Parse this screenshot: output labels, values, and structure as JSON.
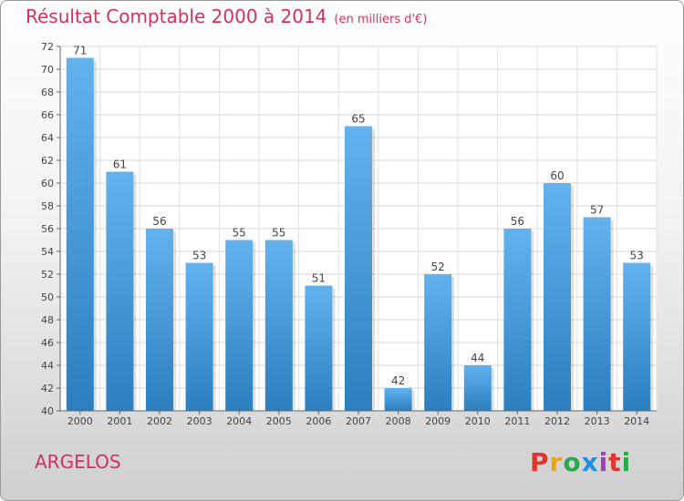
{
  "header": {
    "title": "Résultat Comptable 2000 à 2014",
    "unit": "(en milliers d'€)"
  },
  "footer": {
    "commune": "ARGELOS",
    "logo_text": "Proxiti",
    "logo_colors": [
      "#e3342f",
      "#f0a30a",
      "#2aa84a",
      "#1f8fe0",
      "#9b3fc4",
      "#e3342f",
      "#2aa84a"
    ]
  },
  "chart_data": {
    "type": "bar",
    "title": "Résultat Comptable 2000 à 2014",
    "xlabel": "",
    "ylabel": "",
    "categories": [
      "2000",
      "2001",
      "2002",
      "2003",
      "2004",
      "2005",
      "2006",
      "2007",
      "2008",
      "2009",
      "2010",
      "2011",
      "2012",
      "2013",
      "2014"
    ],
    "values": [
      71,
      61,
      56,
      53,
      55,
      55,
      51,
      65,
      42,
      52,
      44,
      56,
      60,
      57,
      53
    ],
    "ylim": [
      40,
      72
    ],
    "yticks": [
      40,
      42,
      44,
      46,
      48,
      50,
      52,
      54,
      56,
      58,
      60,
      62,
      64,
      66,
      68,
      70,
      72
    ],
    "grid": true,
    "bar_color_top": "#62b2ee",
    "bar_color_bottom": "#2b7fc0"
  }
}
